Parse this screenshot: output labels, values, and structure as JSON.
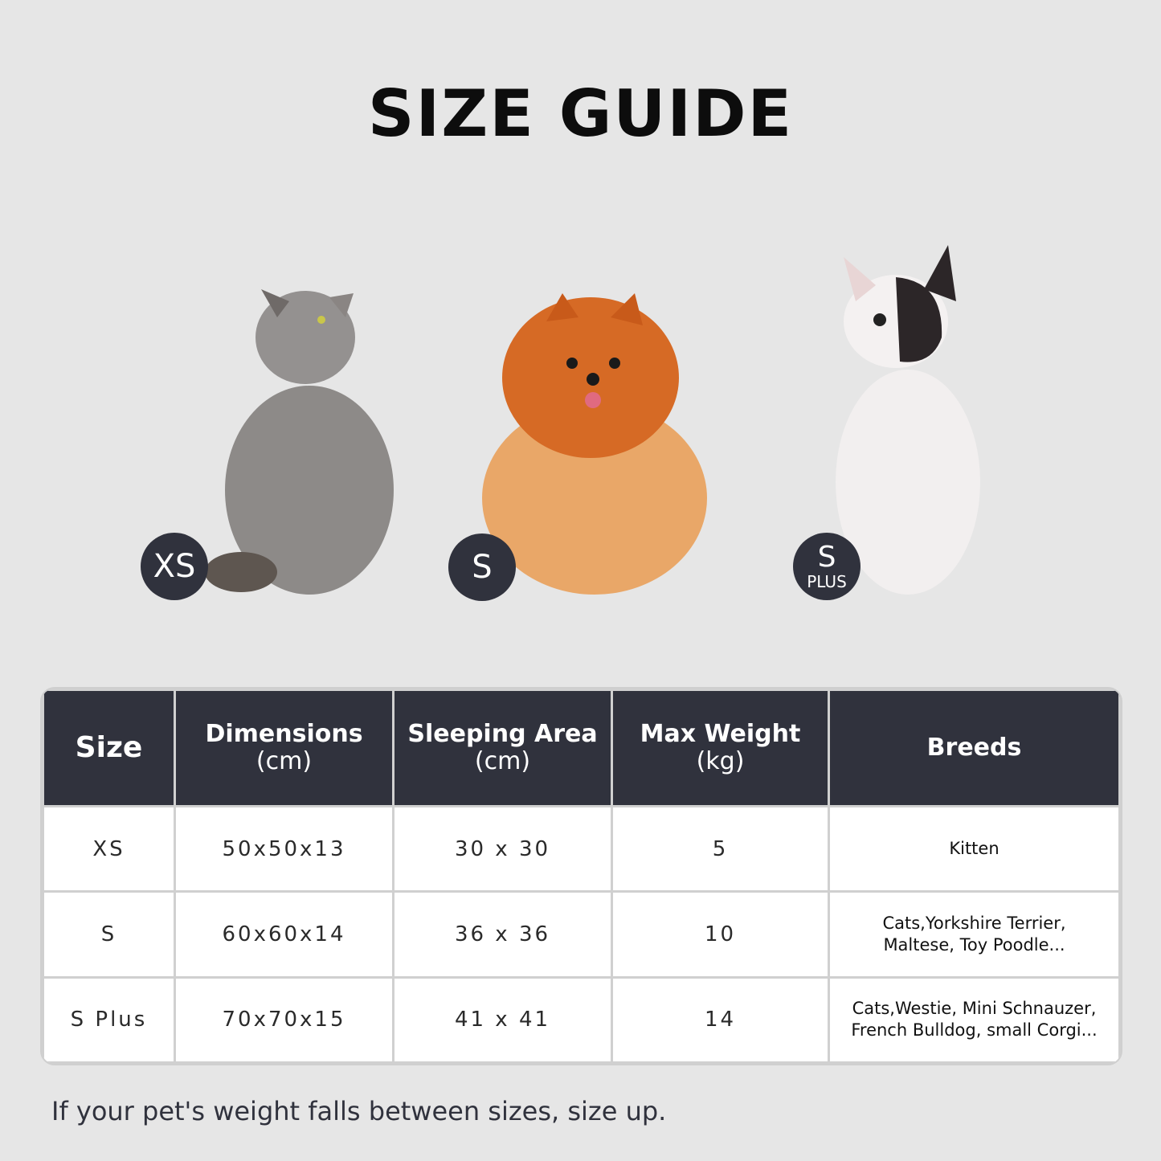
{
  "title": "SIZE GUIDE",
  "pets": [
    {
      "animal": "grey cat",
      "badge": "XS",
      "badge_sub": ""
    },
    {
      "animal": "pomeranian",
      "badge": "S",
      "badge_sub": ""
    },
    {
      "animal": "french bulldog",
      "badge": "S",
      "badge_sub": "PLUS"
    }
  ],
  "colors": {
    "background": "#e6e6e6",
    "dark": "#30323d"
  },
  "table": {
    "headers": {
      "size": "Size",
      "dimensions": [
        "Dimensions",
        "(cm)"
      ],
      "sleeping_area": [
        "Sleeping Area",
        "(cm)"
      ],
      "max_weight": [
        "Max Weight",
        "(kg)"
      ],
      "breeds": "Breeds"
    },
    "rows": [
      {
        "size": "XS",
        "dimensions": "50x50x13",
        "sleeping_area": "30 x 30",
        "max_weight": "5",
        "breeds": [
          "Kitten",
          ""
        ]
      },
      {
        "size": "S",
        "dimensions": "60x60x14",
        "sleeping_area": "36 x 36",
        "max_weight": "10",
        "breeds": [
          "Cats,Yorkshire Terrier,",
          "Maltese, Toy Poodle..."
        ]
      },
      {
        "size": "S Plus",
        "dimensions": "70x70x15",
        "sleeping_area": "41 x 41",
        "max_weight": "14",
        "breeds": [
          "Cats,Westie, Mini Schnauzer,",
          "French Bulldog, small Corgi..."
        ]
      }
    ]
  },
  "note": "If your pet's weight falls between sizes, size up."
}
